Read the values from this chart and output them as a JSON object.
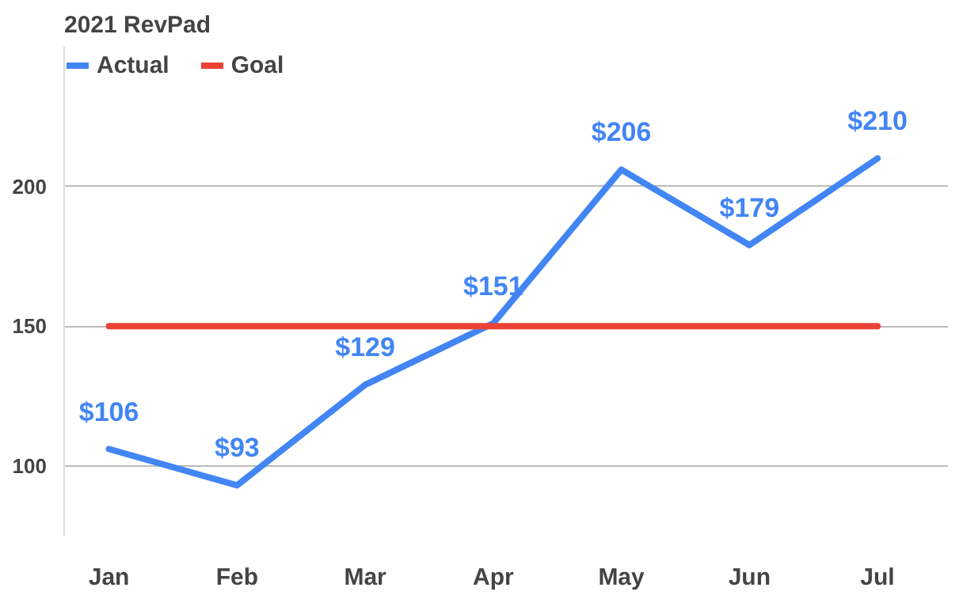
{
  "chart_data": {
    "type": "line",
    "title": "2021 RevPad",
    "categories": [
      "Jan",
      "Feb",
      "Mar",
      "Apr",
      "May",
      "Jun",
      "Jul"
    ],
    "series": [
      {
        "name": "Actual",
        "color": "#4285f4",
        "values": [
          106,
          93,
          129,
          151,
          206,
          179,
          210
        ],
        "value_labels": [
          "$106",
          "$93",
          "$129",
          "$151",
          "$206",
          "$179",
          "$210"
        ]
      },
      {
        "name": "Goal",
        "color": "#ea4335",
        "values": [
          150,
          150,
          150,
          150,
          150,
          150,
          150
        ]
      }
    ],
    "ylim": [
      75,
      250
    ],
    "yticks": [
      100,
      150,
      200
    ],
    "grid": "y",
    "legend": "top"
  }
}
